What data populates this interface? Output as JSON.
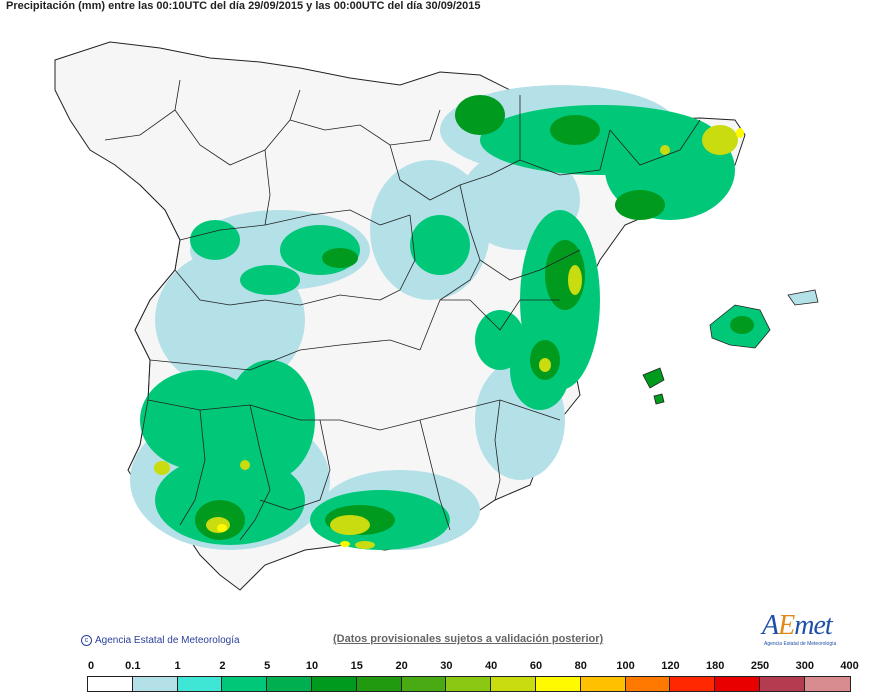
{
  "title": "Precipitación (mm) entre las 00:10UTC del día 29/09/2015 y las 00:00UTC del día 30/09/2015",
  "credit": "Agencia Estatal de Meteorología",
  "disclaimer": "(Datos provisionales sujetos a validación posterior)",
  "logo": {
    "word_a": "A",
    "word_e": "E",
    "word_rest": "met",
    "subtitle": "Agencia Estatal de Meteorología"
  },
  "legend": {
    "ticks": [
      "0",
      "0.1",
      "1",
      "2",
      "5",
      "10",
      "15",
      "20",
      "30",
      "40",
      "60",
      "80",
      "100",
      "120",
      "180",
      "250",
      "300",
      "400"
    ],
    "colors": [
      "#ffffff",
      "#b4e0e8",
      "#3fe6d6",
      "#00c878",
      "#00b050",
      "#009a1e",
      "#229a10",
      "#4aaa14",
      "#8ac814",
      "#c8dc10",
      "#fffa00",
      "#ffc000",
      "#ff7800",
      "#ff2800",
      "#e80000",
      "#b43c50",
      "#d88c90",
      "#f0c0c0"
    ]
  }
}
